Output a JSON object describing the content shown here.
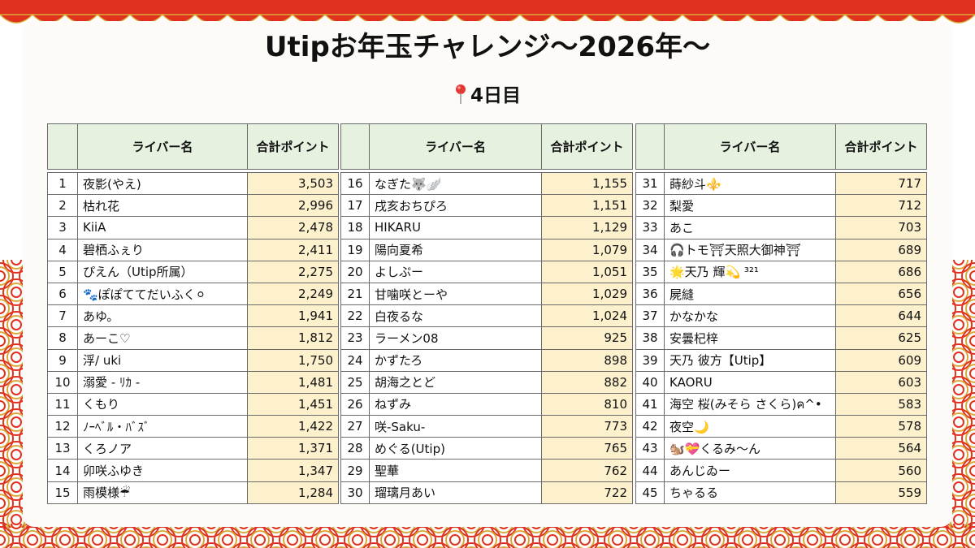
{
  "title": "Utipお年玉チャレンジ〜2026年〜",
  "subtitle": "4日目",
  "header": {
    "name_col": "ライバー名",
    "points_col": "合計ポイント"
  },
  "colors": {
    "header_bg": "#e6f1e0",
    "points_bg": "#fdf1cd",
    "decor_red": "#e0301e",
    "decor_gold": "#d8a93a"
  },
  "tables": [
    {
      "rows": [
        {
          "rank": "1",
          "name": "夜影(やえ)",
          "points": "3,503"
        },
        {
          "rank": "2",
          "name": "枯れ花",
          "points": "2,996"
        },
        {
          "rank": "3",
          "name": "KiiA",
          "points": "2,478"
        },
        {
          "rank": "4",
          "name": "碧栖ふぇり",
          "points": "2,411"
        },
        {
          "rank": "5",
          "name": "ぴえん（Utip所属）",
          "points": "2,275"
        },
        {
          "rank": "6",
          "name": "🐾ぽぽててだいふく⚪",
          "points": "2,249"
        },
        {
          "rank": "7",
          "name": "あゆ。",
          "points": "1,941"
        },
        {
          "rank": "8",
          "name": "あーこ♡",
          "points": "1,812"
        },
        {
          "rank": "9",
          "name": "浮/ uki",
          "points": "1,750"
        },
        {
          "rank": "10",
          "name": "溺愛 - ﾘｶ -",
          "points": "1,481"
        },
        {
          "rank": "11",
          "name": "くもり",
          "points": "1,451"
        },
        {
          "rank": "12",
          "name": "ﾉｰﾍﾞﾙ・ﾊﾞｽﾞ",
          "points": "1,422"
        },
        {
          "rank": "13",
          "name": "くろノア",
          "points": "1,371"
        },
        {
          "rank": "14",
          "name": "卯咲ふゆき",
          "points": "1,347"
        },
        {
          "rank": "15",
          "name": "雨模様☔",
          "points": "1,284"
        }
      ]
    },
    {
      "rows": [
        {
          "rank": "16",
          "name": "なぎた🐺🪽",
          "points": "1,155"
        },
        {
          "rank": "17",
          "name": "戌亥おちぴろ",
          "points": "1,151"
        },
        {
          "rank": "18",
          "name": "HIKARU",
          "points": "1,129"
        },
        {
          "rank": "19",
          "name": "陽向夏希",
          "points": "1,079"
        },
        {
          "rank": "20",
          "name": "よしぷー",
          "points": "1,051"
        },
        {
          "rank": "21",
          "name": "甘噛咲とーや",
          "points": "1,029"
        },
        {
          "rank": "22",
          "name": "白夜るな",
          "points": "1,024"
        },
        {
          "rank": "23",
          "name": "ラーメン08",
          "points": "925"
        },
        {
          "rank": "24",
          "name": "かずたろ",
          "points": "898"
        },
        {
          "rank": "25",
          "name": "胡海之とど",
          "points": "882"
        },
        {
          "rank": "26",
          "name": "ねずみ",
          "points": "810"
        },
        {
          "rank": "27",
          "name": "咲-Saku-",
          "points": "773"
        },
        {
          "rank": "28",
          "name": "めぐる(Utip)",
          "points": "765"
        },
        {
          "rank": "29",
          "name": "聖華",
          "points": "762"
        },
        {
          "rank": "30",
          "name": "瑠璃月あい",
          "points": "722"
        }
      ]
    },
    {
      "rows": [
        {
          "rank": "31",
          "name": "蒔紗斗⚜️",
          "points": "717"
        },
        {
          "rank": "32",
          "name": "梨愛",
          "points": "712"
        },
        {
          "rank": "33",
          "name": "あこ",
          "points": "703"
        },
        {
          "rank": "34",
          "name": "🎧トモ⛩天照大御神⛩",
          "points": "689"
        },
        {
          "rank": "35",
          "name": "🌟天乃 輝💫 ³²¹",
          "points": "686"
        },
        {
          "rank": "36",
          "name": "屍縫",
          "points": "656"
        },
        {
          "rank": "37",
          "name": "かなかな",
          "points": "644"
        },
        {
          "rank": "38",
          "name": "安曇杞梓",
          "points": "625"
        },
        {
          "rank": "39",
          "name": "天乃 彼方【Utip】",
          "points": "609"
        },
        {
          "rank": "40",
          "name": "KAORU",
          "points": "603"
        },
        {
          "rank": "41",
          "name": "海空 桜(みそら さくら)ค^•",
          "points": "583"
        },
        {
          "rank": "42",
          "name": "夜空🌙",
          "points": "578"
        },
        {
          "rank": "43",
          "name": "🐿️💝くるみ〜ん",
          "points": "564"
        },
        {
          "rank": "44",
          "name": "あんじゐー",
          "points": "560"
        },
        {
          "rank": "45",
          "name": "ちゃるる",
          "points": "559"
        }
      ]
    }
  ]
}
